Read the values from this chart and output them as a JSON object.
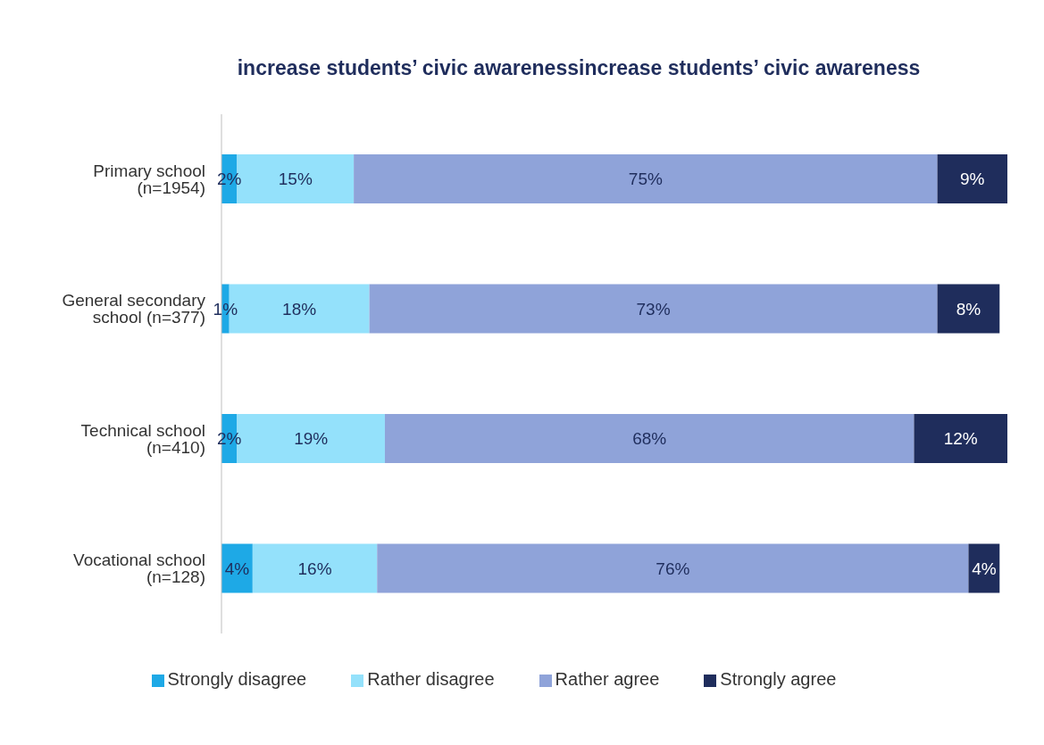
{
  "chart_data": {
    "type": "bar",
    "orientation": "horizontal",
    "stacked": true,
    "title": "increase students’ civic awarenessincrease students’ civic awareness",
    "categories": [
      "Primary school (n=1954)",
      "General secondary school (n=377)",
      "Technical school (n=410)",
      "Vocational school (n=128)"
    ],
    "series": [
      {
        "name": "Strongly disagree",
        "color": "#1ea9e6",
        "values": [
          2,
          1,
          2,
          4
        ],
        "value_labels": [
          "2%",
          "1%",
          "2%",
          "4%"
        ]
      },
      {
        "name": "Rather disagree",
        "color": "#94e1fb",
        "values": [
          15,
          18,
          19,
          16
        ],
        "value_labels": [
          "15%",
          "18%",
          "19%",
          "16%"
        ]
      },
      {
        "name": "Rather agree",
        "color": "#8fa3d9",
        "values": [
          75,
          73,
          68,
          76
        ],
        "value_labels": [
          "75%",
          "73%",
          "68%",
          "76%"
        ]
      },
      {
        "name": "Strongly agree",
        "color": "#1f2d5c",
        "values": [
          9,
          8,
          12,
          4
        ],
        "value_labels": [
          "9%",
          "8%",
          "12%",
          "4%"
        ]
      }
    ],
    "grid": false,
    "legend": "bottom",
    "tick_labels": "y"
  }
}
